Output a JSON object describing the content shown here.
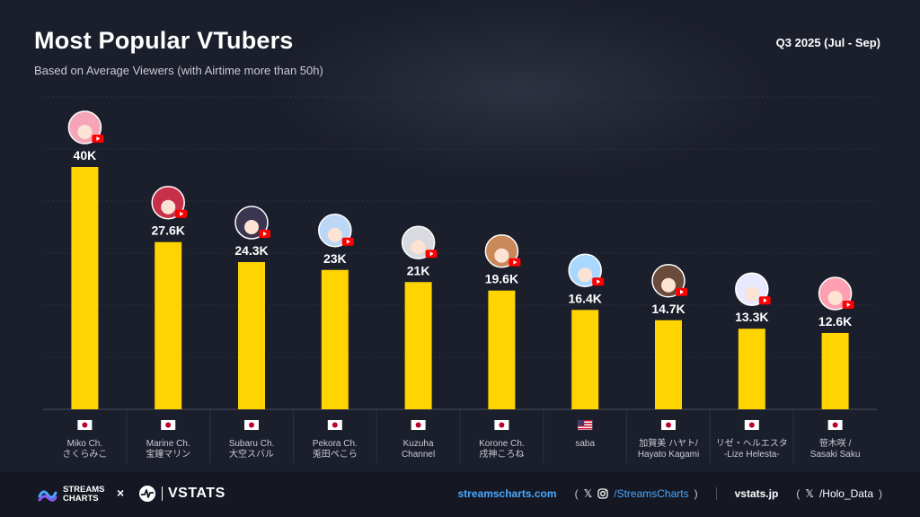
{
  "header": {
    "title": "Most Popular VTubers",
    "subtitle": "Based on Average Viewers (with Airtime more than 50h)",
    "period": "Q3 2025 (Jul - Sep)"
  },
  "chart_data": {
    "type": "bar",
    "title": "Most Popular VTubers",
    "subtitle": "Based on Average Viewers (with Airtime more than 50h)",
    "categories": [
      [
        "Miko Ch.",
        "さくらみこ"
      ],
      [
        "Marine Ch.",
        "宝鐘マリン"
      ],
      [
        "Subaru Ch.",
        "大空スバル"
      ],
      [
        "Pekora Ch.",
        "兎田ぺこら"
      ],
      [
        "Kuzuha",
        "Channel"
      ],
      [
        "Korone Ch.",
        "戌神ころね"
      ],
      [
        "saba"
      ],
      [
        "加賀美 ハヤト/",
        "Hayato Kagami"
      ],
      [
        "リゼ・ヘルエスタ",
        "-Lize Helesta-"
      ],
      [
        "笹木咲 /",
        "Sasaki Saku"
      ]
    ],
    "values": [
      40000,
      27600,
      24300,
      23000,
      21000,
      19600,
      16400,
      14700,
      13300,
      12600
    ],
    "value_labels": [
      "40K",
      "27.6K",
      "24.3K",
      "23K",
      "21K",
      "19.6K",
      "16.4K",
      "14.7K",
      "13.3K",
      "12.6K"
    ],
    "countries": [
      "JP",
      "JP",
      "JP",
      "JP",
      "JP",
      "JP",
      "US",
      "JP",
      "JP",
      "JP"
    ],
    "avatar_colors": [
      "#f4a6b8",
      "#c8304a",
      "#3a3550",
      "#bcd6f5",
      "#d9d9e0",
      "#c8885a",
      "#a8d8ff",
      "#6a4a3a",
      "#e8e8ff",
      "#ff9fb2"
    ],
    "bar_color": "#ffd400",
    "ylim": [
      0,
      40000
    ],
    "grid": true,
    "legend": "none",
    "xlabel": "",
    "ylabel": ""
  },
  "footer": {
    "brand_left": [
      "STREAMS",
      "CHARTS"
    ],
    "times": "×",
    "brand_right": "VSTATS",
    "site1": "streamscharts.com",
    "handle1": "/StreamsCharts",
    "site2": "vstats.jp",
    "handle2": "/Holo_Data",
    "paren_open": "(",
    "paren_close": ")"
  }
}
